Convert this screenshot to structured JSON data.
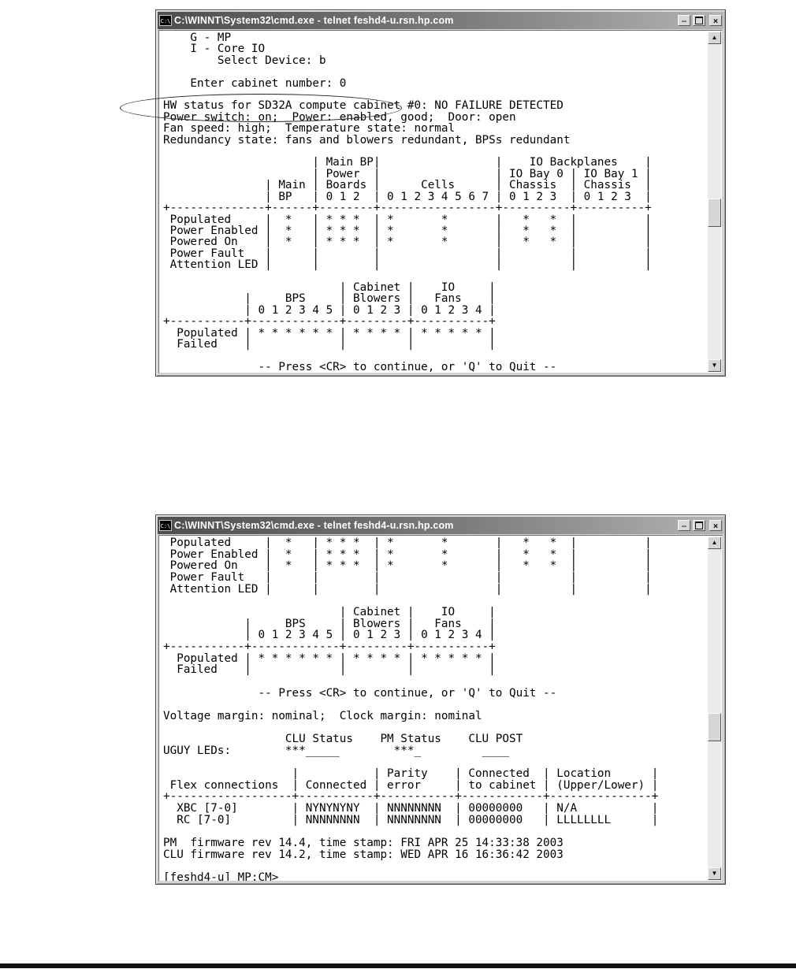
{
  "page": {
    "background": "#ffffff",
    "bottom_rule_color": "#101010"
  },
  "icons": {
    "scroll_up": "▲",
    "scroll_down": "▼",
    "minimize_glyph": "_",
    "close_glyph": "×",
    "cmd_icon_label": "C:\\"
  },
  "annotation": {
    "shape": "ellipse",
    "stroke_color": "#222222",
    "circled_text": "Power switch: on;  Power: enabled,"
  },
  "terminal_windows": [
    {
      "title": "C:\\WINNT\\System32\\cmd.exe - telnet feshd4-u.rsn.hp.com",
      "screen_lines": [
        "    G - MP",
        "    I - Core IO",
        "        Select Device: b",
        "",
        "    Enter cabinet number: 0",
        "",
        "HW status for SD32A compute cabinet #0: NO FAILURE DETECTED",
        "Power switch: on;  Power: enabled, good;  Door: open",
        "Fan speed: high;  Temperature state: normal",
        "Redundancy state: fans and blowers redundant, BPSs redundant",
        "",
        "                      | Main BP|                 |    IO Backplanes    |",
        "                      | Power  |                 | IO Bay 0 | IO Bay 1 |",
        "               | Main | Boards |      Cells      | Chassis  | Chassis  |",
        "               | BP   | 0 1 2  | 0 1 2 3 4 5 6 7 | 0 1 2 3  | 0 1 2 3  |",
        "+--------------+------+--------+-----------------+----------+----------+",
        " Populated     |  *   | * * *  | *       *       |   *   *  |          |",
        " Power Enabled |  *   | * * *  | *       *       |   *   *  |          |",
        " Powered On    |  *   | * * *  | *       *       |   *   *  |          |",
        " Power Fault   |      |        |                 |          |          |",
        " Attention LED |      |        |                 |          |          |",
        "",
        "                          | Cabinet |    IO     |",
        "            |     BPS     | Blowers |   Fans    |",
        "            | 0 1 2 3 4 5 | 0 1 2 3 | 0 1 2 3 4 |",
        "+-----------+-------------+---------+-----------+",
        "  Populated | * * * * * * | * * * * | * * * * * |",
        "  Failed    |             |         |           |",
        "",
        "              -- Press <CR> to continue, or 'Q' to Quit --"
      ]
    },
    {
      "title": "C:\\WINNT\\System32\\cmd.exe - telnet feshd4-u.rsn.hp.com",
      "screen_lines": [
        " Populated     |  *   | * * *  | *       *       |   *   *  |          |",
        " Power Enabled |  *   | * * *  | *       *       |   *   *  |          |",
        " Powered On    |  *   | * * *  | *       *       |   *   *  |          |",
        " Power Fault   |      |        |                 |          |          |",
        " Attention LED |      |        |                 |          |          |",
        "",
        "                          | Cabinet |    IO     |",
        "            |     BPS     | Blowers |   Fans    |",
        "            | 0 1 2 3 4 5 | 0 1 2 3 | 0 1 2 3 4 |",
        "+-----------+-------------+---------+-----------+",
        "  Populated | * * * * * * | * * * * | * * * * * |",
        "  Failed    |             |         |           |",
        "",
        "              -- Press <CR> to continue, or 'Q' to Quit --",
        "",
        "Voltage margin: nominal;  Clock margin: nominal",
        "",
        "                  CLU Status    PM Status    CLU POST",
        "UGUY LEDs:        ***_____        ***_         ____",
        "",
        "                   |           | Parity    | Connected  | Location      |",
        " Flex connections  | Connected | error     | to cabinet | (Upper/Lower) |",
        "+------------------+-----------+-----------+------------+---------------+",
        "  XBC [7-0]        | NYNYNYNY  | NNNNNNNN  | 00000000   | N/A           |",
        "  RC [7-0]         | NNNNNNNN  | NNNNNNNN  | 00000000   | LLLLLLLL      |",
        "",
        "PM  firmware rev 14.4, time stamp: FRI APR 25 14:33:38 2003",
        "CLU firmware rev 14.2, time stamp: WED APR 16 16:36:42 2003",
        "",
        "[feshd4-u] MP:CM> _"
      ]
    }
  ]
}
